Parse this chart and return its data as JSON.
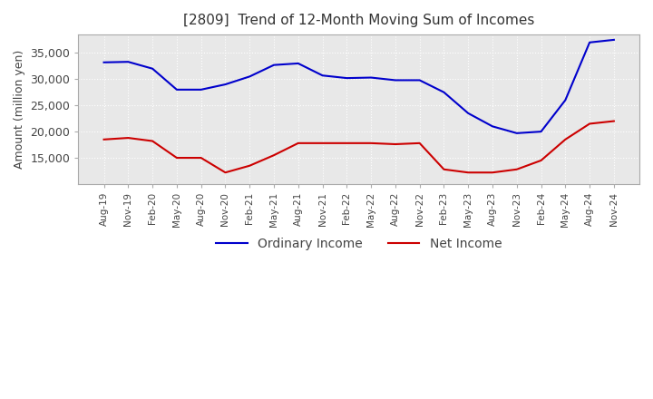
{
  "title": "[2809]  Trend of 12-Month Moving Sum of Incomes",
  "ylabel": "Amount (million yen)",
  "background_color": "#ffffff",
  "plot_bg_color": "#e8e8e8",
  "grid_color": "#ffffff",
  "x_labels": [
    "Aug-19",
    "Nov-19",
    "Feb-20",
    "May-20",
    "Aug-20",
    "Nov-20",
    "Feb-21",
    "May-21",
    "Aug-21",
    "Nov-21",
    "Feb-22",
    "May-22",
    "Aug-22",
    "Nov-22",
    "Feb-23",
    "May-23",
    "Aug-23",
    "Nov-23",
    "Feb-24",
    "May-24",
    "Aug-24",
    "Nov-24"
  ],
  "ordinary_income": [
    33200,
    33300,
    32000,
    28000,
    28000,
    29000,
    30500,
    32700,
    33000,
    30700,
    30200,
    30300,
    29800,
    29800,
    27500,
    23500,
    21000,
    19700,
    20000,
    26000,
    37000,
    37500
  ],
  "net_income": [
    18500,
    18800,
    18200,
    15000,
    15000,
    12200,
    13500,
    15500,
    17800,
    17800,
    17800,
    17800,
    17600,
    17800,
    12800,
    12200,
    12200,
    12800,
    14500,
    18500,
    21500,
    22000
  ],
  "ordinary_color": "#0000cc",
  "net_color": "#cc0000",
  "ylim_min": 10000,
  "ylim_max": 38500,
  "yticks": [
    15000,
    20000,
    25000,
    30000,
    35000
  ]
}
